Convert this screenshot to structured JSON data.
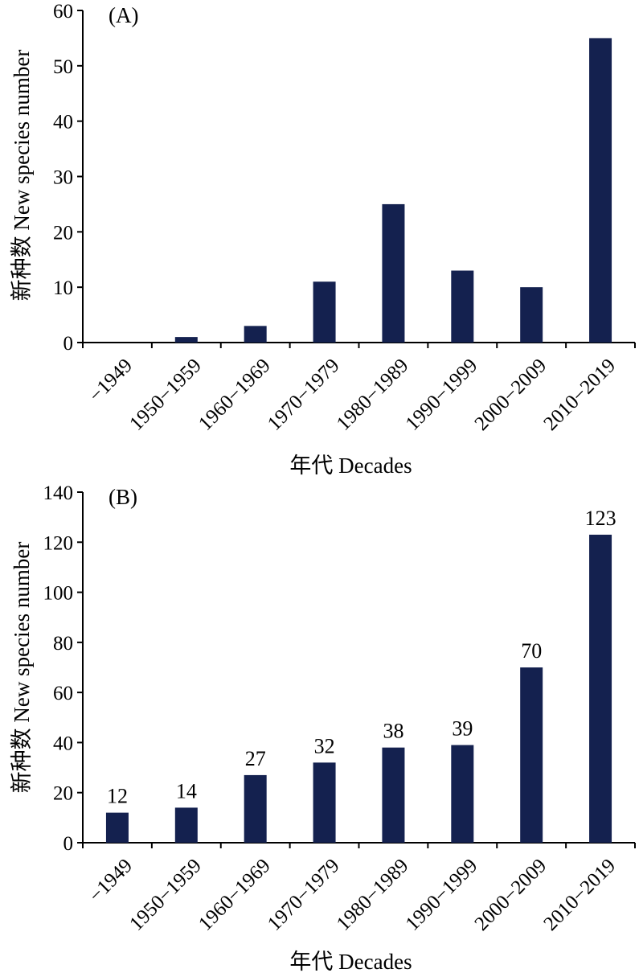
{
  "bar_color": "#14214f",
  "chart_data": [
    {
      "type": "bar",
      "panel_label": "(A)",
      "categories": [
        "−1949",
        "1950−1959",
        "1960−1969",
        "1970−1979",
        "1980−1989",
        "1990−1999",
        "2000−2009",
        "2010−2019"
      ],
      "values": [
        0,
        1,
        3,
        11,
        25,
        13,
        10,
        55
      ],
      "xlabel": "年代 Decades",
      "ylabel": "新种数 New species number",
      "ylim": [
        0,
        60
      ],
      "yticks": [
        0,
        10,
        20,
        30,
        40,
        50,
        60
      ],
      "data_labels": false,
      "grid": false
    },
    {
      "type": "bar",
      "panel_label": "(B)",
      "categories": [
        "−1949",
        "1950−1959",
        "1960−1969",
        "1970−1979",
        "1980−1989",
        "1990−1999",
        "2000−2009",
        "2010−2019"
      ],
      "values": [
        12,
        14,
        27,
        32,
        38,
        39,
        70,
        123
      ],
      "xlabel": "年代 Decades",
      "ylabel": "新种数 New species number",
      "ylim": [
        0,
        140
      ],
      "yticks": [
        0,
        20,
        40,
        60,
        80,
        100,
        120,
        140
      ],
      "data_labels": true,
      "grid": false
    }
  ]
}
